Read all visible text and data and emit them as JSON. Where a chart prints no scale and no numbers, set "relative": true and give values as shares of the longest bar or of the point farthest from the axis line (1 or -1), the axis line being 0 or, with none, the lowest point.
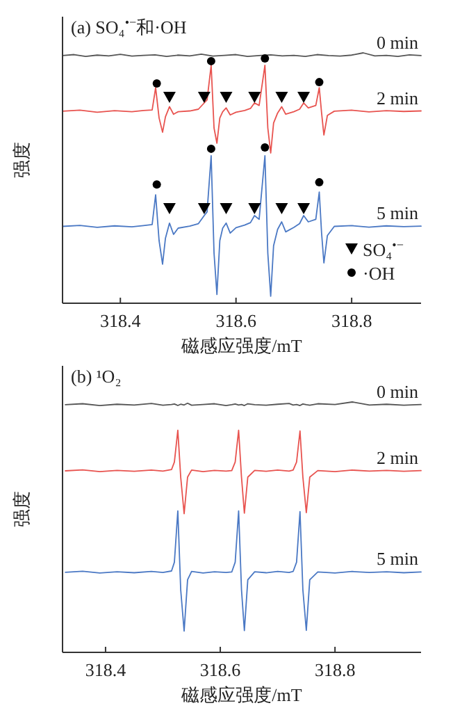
{
  "chart_data": [
    {
      "type": "line",
      "relative": true,
      "title": "(a)  SO₄$^{•−}$和·OH",
      "xlabel": "磁感应强度/mT",
      "ylabel": "强度",
      "xlim": [
        318.3,
        318.92
      ],
      "xticks": [
        318.4,
        318.6,
        318.8
      ],
      "legend": "bottom right",
      "series": [
        {
          "name": "0 min",
          "color": "#555555",
          "x": [
            318.3,
            318.32,
            318.34,
            318.36,
            318.38,
            318.4,
            318.42,
            318.44,
            318.46,
            318.48,
            318.5,
            318.52,
            318.54,
            318.56,
            318.58,
            318.6,
            318.62,
            318.64,
            318.66,
            318.68,
            318.7,
            318.72,
            318.74,
            318.76,
            318.78,
            318.8,
            318.82,
            318.84,
            318.86,
            318.88,
            318.9,
            318.92
          ],
          "values": [
            0.989,
            0.993,
            0.986,
            0.991,
            0.988,
            0.994,
            0.987,
            0.99,
            0.992,
            0.986,
            0.991,
            0.988,
            0.995,
            0.987,
            0.99,
            0.993,
            0.986,
            0.989,
            0.992,
            0.988,
            0.99,
            0.986,
            0.993,
            0.989,
            0.987,
            0.991,
            1.0,
            0.988,
            0.99,
            0.986,
            0.992,
            0.989
          ]
        },
        {
          "name": "2 min",
          "color": "#e8534f",
          "x": [
            318.3,
            318.33,
            318.36,
            318.39,
            318.42,
            318.44,
            318.455,
            318.461,
            318.467,
            318.473,
            318.478,
            318.485,
            318.492,
            318.5,
            318.52,
            318.535,
            318.545,
            318.55,
            318.557,
            318.562,
            318.567,
            318.572,
            318.577,
            318.583,
            318.59,
            318.6,
            318.615,
            318.625,
            318.632,
            318.64,
            318.65,
            318.655,
            318.66,
            318.665,
            318.672,
            318.679,
            318.686,
            318.7,
            318.71,
            318.717,
            318.725,
            318.738,
            318.744,
            318.748,
            318.752,
            318.758,
            318.77,
            318.8,
            318.83,
            318.86,
            318.89,
            318.92
          ],
          "values": [
            0.767,
            0.771,
            0.763,
            0.769,
            0.765,
            0.77,
            0.772,
            0.861,
            0.74,
            0.683,
            0.745,
            0.785,
            0.755,
            0.765,
            0.768,
            0.775,
            0.8,
            0.812,
            0.95,
            0.7,
            0.639,
            0.74,
            0.765,
            0.78,
            0.752,
            0.763,
            0.77,
            0.778,
            0.8,
            0.79,
            0.95,
            0.7,
            0.6,
            0.72,
            0.76,
            0.785,
            0.755,
            0.765,
            0.775,
            0.8,
            0.78,
            0.79,
            0.861,
            0.76,
            0.672,
            0.75,
            0.767,
            0.771,
            0.764,
            0.769,
            0.766,
            0.768
          ]
        },
        {
          "name": "5 min",
          "color": "#4a78c4",
          "x": [
            318.3,
            318.33,
            318.36,
            318.39,
            318.42,
            318.44,
            318.455,
            318.461,
            318.467,
            318.473,
            318.478,
            318.485,
            318.492,
            318.5,
            318.52,
            318.535,
            318.545,
            318.55,
            318.557,
            318.562,
            318.567,
            318.572,
            318.577,
            318.583,
            318.59,
            318.6,
            318.615,
            318.625,
            318.632,
            318.64,
            318.65,
            318.655,
            318.66,
            318.665,
            318.672,
            318.679,
            318.686,
            318.7,
            318.71,
            318.717,
            318.725,
            318.738,
            318.744,
            318.748,
            318.752,
            318.758,
            318.77,
            318.8,
            318.83,
            318.86,
            318.89,
            318.92
          ],
          "values": [
            0.307,
            0.311,
            0.303,
            0.309,
            0.305,
            0.31,
            0.314,
            0.433,
            0.25,
            0.156,
            0.26,
            0.32,
            0.275,
            0.3,
            0.308,
            0.318,
            0.35,
            0.365,
            0.589,
            0.2,
            0.035,
            0.25,
            0.3,
            0.32,
            0.28,
            0.302,
            0.312,
            0.322,
            0.35,
            0.335,
            0.589,
            0.2,
            0.028,
            0.23,
            0.295,
            0.325,
            0.285,
            0.303,
            0.318,
            0.35,
            0.325,
            0.335,
            0.444,
            0.28,
            0.161,
            0.27,
            0.307,
            0.31,
            0.304,
            0.309,
            0.306,
            0.308
          ]
        },
        {
          "type": "scatter",
          "marker": "triangle",
          "name": "SO₄$^{•−}$",
          "color": "#000000",
          "x": [
            318.485,
            318.545,
            318.583,
            318.632,
            318.679,
            318.717,
            318.485,
            318.545,
            318.583,
            318.632,
            318.679,
            318.717
          ],
          "values": [
            0.822,
            0.822,
            0.822,
            0.822,
            0.822,
            0.822,
            0.378,
            0.378,
            0.378,
            0.378,
            0.378,
            0.378
          ]
        },
        {
          "type": "scatter",
          "marker": "circle",
          "name": "·OH",
          "color": "#000000",
          "x": [
            318.463,
            318.557,
            318.65,
            318.744,
            318.463,
            318.557,
            318.65,
            318.744
          ],
          "values": [
            0.878,
            0.967,
            0.978,
            0.883,
            0.474,
            0.617,
            0.622,
            0.483
          ]
        }
      ]
    },
    {
      "type": "line",
      "relative": true,
      "title": "(b)  ¹O₂",
      "xlabel": "磁感应强度/mT",
      "ylabel": "强度",
      "xlim": [
        318.325,
        318.95
      ],
      "xticks": [
        318.4,
        318.6,
        318.8
      ],
      "series": [
        {
          "name": "0 min",
          "color": "#555555",
          "x": [
            318.33,
            318.36,
            318.39,
            318.42,
            318.45,
            318.48,
            318.5,
            318.515,
            318.52,
            318.526,
            318.531,
            318.537,
            318.543,
            318.55,
            318.57,
            318.59,
            318.61,
            318.62,
            318.626,
            318.632,
            318.637,
            318.642,
            318.648,
            318.66,
            318.68,
            318.7,
            318.72,
            318.727,
            318.733,
            318.739,
            318.744,
            318.75,
            318.756,
            318.77,
            318.8,
            318.83,
            318.86,
            318.89,
            318.92,
            318.95
          ],
          "values": [
            0.989,
            0.993,
            0.986,
            0.991,
            0.988,
            0.994,
            0.987,
            0.99,
            0.992,
            0.986,
            0.991,
            0.988,
            0.995,
            0.987,
            0.99,
            0.993,
            0.986,
            0.989,
            0.992,
            0.988,
            0.99,
            0.986,
            0.993,
            0.989,
            0.987,
            0.991,
            0.994,
            0.988,
            0.99,
            0.986,
            0.992,
            0.989,
            0.987,
            0.993,
            0.99,
            1.0,
            0.988,
            0.991,
            0.987,
            0.99
          ]
        },
        {
          "name": "2 min",
          "color": "#e8534f",
          "x": [
            318.33,
            318.36,
            318.39,
            318.42,
            318.45,
            318.48,
            318.5,
            318.515,
            318.52,
            318.526,
            318.531,
            318.537,
            318.543,
            318.55,
            318.57,
            318.59,
            318.61,
            318.62,
            318.626,
            318.632,
            318.637,
            318.642,
            318.648,
            318.66,
            318.68,
            318.7,
            318.72,
            318.727,
            318.733,
            318.739,
            318.744,
            318.75,
            318.756,
            318.77,
            318.8,
            318.83,
            318.86,
            318.89,
            318.92,
            318.95
          ],
          "values": [
            0.725,
            0.729,
            0.722,
            0.727,
            0.723,
            0.728,
            0.724,
            0.73,
            0.76,
            0.887,
            0.7,
            0.554,
            0.7,
            0.728,
            0.722,
            0.727,
            0.724,
            0.726,
            0.76,
            0.887,
            0.7,
            0.556,
            0.7,
            0.727,
            0.723,
            0.728,
            0.724,
            0.728,
            0.76,
            0.884,
            0.7,
            0.558,
            0.7,
            0.726,
            0.722,
            0.728,
            0.724,
            0.727,
            0.723,
            0.726
          ]
        },
        {
          "name": "5 min",
          "color": "#4a78c4",
          "x": [
            318.33,
            318.36,
            318.39,
            318.42,
            318.45,
            318.48,
            318.5,
            318.515,
            318.52,
            318.526,
            318.531,
            318.537,
            318.543,
            318.55,
            318.57,
            318.59,
            318.61,
            318.62,
            318.626,
            318.632,
            318.637,
            318.642,
            318.648,
            318.66,
            318.68,
            318.7,
            318.72,
            318.727,
            318.733,
            318.739,
            318.744,
            318.75,
            318.756,
            318.77,
            318.8,
            318.83,
            318.86,
            318.89,
            318.92,
            318.95
          ],
          "values": [
            0.32,
            0.324,
            0.317,
            0.322,
            0.318,
            0.323,
            0.319,
            0.325,
            0.36,
            0.565,
            0.25,
            0.085,
            0.29,
            0.323,
            0.317,
            0.322,
            0.319,
            0.321,
            0.36,
            0.565,
            0.25,
            0.087,
            0.29,
            0.322,
            0.318,
            0.323,
            0.319,
            0.323,
            0.36,
            0.562,
            0.25,
            0.088,
            0.29,
            0.321,
            0.317,
            0.323,
            0.319,
            0.322,
            0.318,
            0.321
          ]
        }
      ]
    }
  ]
}
